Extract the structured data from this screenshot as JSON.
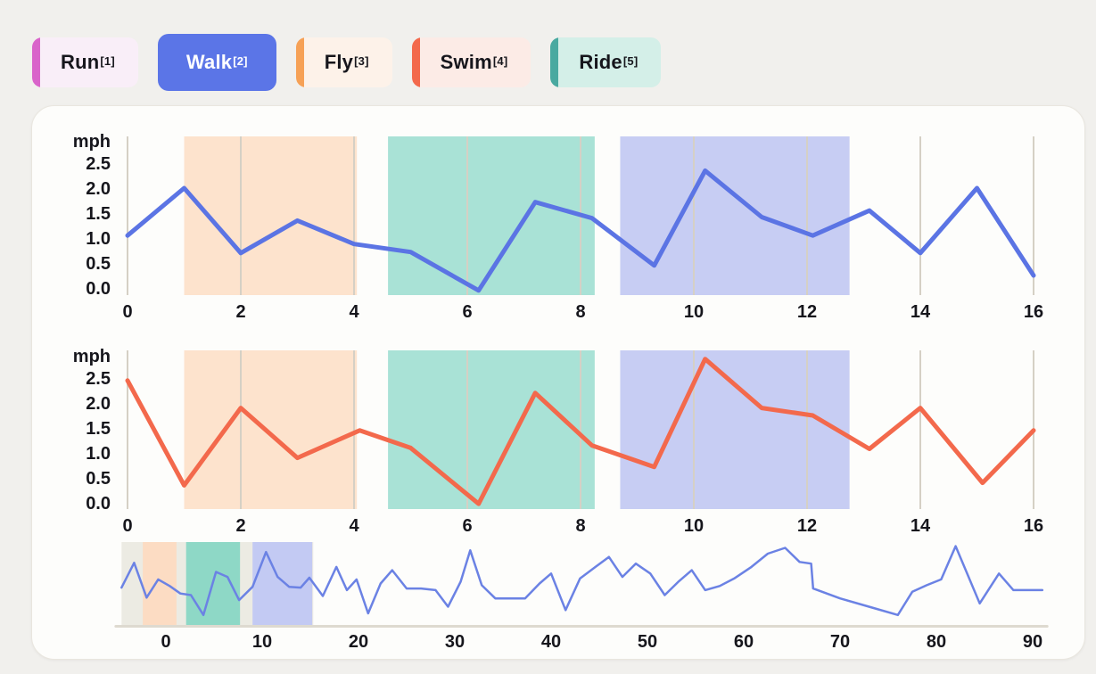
{
  "page": {
    "background": "#f1f0ed",
    "card_background": "#fdfdfb"
  },
  "legend": {
    "items": [
      {
        "id": "run",
        "label": "Run",
        "ref": "[1]",
        "accent": "#d964ca",
        "bg": "#f9eef8",
        "text": "#16161c",
        "selected": false
      },
      {
        "id": "walk",
        "label": "Walk",
        "ref": "[2]",
        "accent": "#5b75e7",
        "bg": "#5b75e7",
        "text": "#ffffff",
        "selected": true
      },
      {
        "id": "fly",
        "label": "Fly",
        "ref": "[3]",
        "accent": "#f6a156",
        "bg": "#fdf2e9",
        "text": "#16161c",
        "selected": false
      },
      {
        "id": "swim",
        "label": "Swim",
        "ref": "[4]",
        "accent": "#f3694c",
        "bg": "#fcebe6",
        "text": "#16161c",
        "selected": false
      },
      {
        "id": "ride",
        "label": "Ride",
        "ref": "[5]",
        "accent": "#49a9a0",
        "bg": "#d4efe8",
        "text": "#16161c",
        "selected": false
      }
    ]
  },
  "chart_data": [
    {
      "id": "walk-speed",
      "type": "line",
      "title": "",
      "ylabel": "mph",
      "xlabel": "",
      "grid": "vertical",
      "legend_position": "none",
      "xlim": [
        -0.6,
        16.8
      ],
      "ylim": [
        -0.15,
        3.04
      ],
      "xticks": [
        0,
        2,
        4,
        6,
        8,
        10,
        12,
        14,
        16
      ],
      "ytick_labels": [
        "0.0",
        "0.5",
        "1.0",
        "1.5",
        "2.0",
        "2.5"
      ],
      "ytick_values": [
        0,
        0.5,
        1.0,
        1.5,
        2.0,
        2.5
      ],
      "series": [
        {
          "name": "Walk",
          "color": "#5b74e4",
          "x": [
            0,
            1,
            2,
            3,
            4,
            5,
            6.2,
            7.2,
            8.2,
            9.3,
            10.2,
            11.2,
            12.1,
            13.1,
            14,
            15,
            16
          ],
          "y": [
            1.05,
            2.0,
            0.7,
            1.35,
            0.88,
            0.72,
            -0.05,
            1.72,
            1.4,
            0.45,
            2.35,
            1.42,
            1.05,
            1.55,
            0.7,
            2.0,
            0.25
          ]
        }
      ],
      "regions": [
        {
          "label": "fly-interval",
          "color": "#fde3cd",
          "from": 1.0,
          "to": 4.05
        },
        {
          "label": "ride-interval",
          "color": "#a9e2d6",
          "from": 4.6,
          "to": 8.25
        },
        {
          "label": "walk-interval",
          "color": "#c7cdf3",
          "from": 8.7,
          "to": 12.75
        }
      ]
    },
    {
      "id": "swim-speed",
      "type": "line",
      "title": "",
      "ylabel": "mph",
      "xlabel": "",
      "grid": "vertical",
      "legend_position": "none",
      "xlim": [
        -0.6,
        16.8
      ],
      "ylim": [
        -0.15,
        3.04
      ],
      "xticks": [
        0,
        2,
        4,
        6,
        8,
        10,
        12,
        14,
        16
      ],
      "ytick_labels": [
        "0.0",
        "0.5",
        "1.0",
        "1.5",
        "2.0",
        "2.5"
      ],
      "ytick_values": [
        0,
        0.5,
        1.0,
        1.5,
        2.0,
        2.5
      ],
      "series": [
        {
          "name": "Swim",
          "color": "#f3694c",
          "x": [
            0,
            1,
            2,
            3,
            4.1,
            5,
            6.2,
            7.2,
            8.2,
            9.3,
            10.2,
            11.2,
            12.1,
            13.1,
            14,
            15.1,
            16
          ],
          "y": [
            2.45,
            0.35,
            1.9,
            0.9,
            1.45,
            1.1,
            -0.02,
            2.2,
            1.15,
            0.72,
            2.88,
            1.9,
            1.75,
            1.08,
            1.9,
            0.4,
            1.45
          ]
        }
      ],
      "regions": [
        {
          "label": "fly-interval",
          "color": "#fde3cd",
          "from": 1.0,
          "to": 4.05
        },
        {
          "label": "ride-interval",
          "color": "#a9e2d6",
          "from": 4.6,
          "to": 8.25
        },
        {
          "label": "walk-interval",
          "color": "#c7cdf3",
          "from": 8.7,
          "to": 12.75
        }
      ]
    },
    {
      "id": "overview",
      "type": "line",
      "title": "",
      "ylabel": "",
      "xlabel": "",
      "grid": "off",
      "legend_position": "none",
      "xlim": [
        -5.2,
        91.5
      ],
      "xticks": [
        0,
        10,
        20,
        30,
        40,
        50,
        60,
        70,
        80,
        90
      ],
      "value_scale": "percent-of-plot-height",
      "series": [
        {
          "name": "overview-speed",
          "color": "#6b82e4",
          "x": [
            -4.6,
            -3.3,
            -2.0,
            -0.8,
            0.4,
            1.5,
            2.6,
            3.9,
            5.2,
            6.4,
            7.6,
            9.0,
            10.4,
            11.6,
            12.8,
            14.0,
            14.9,
            16.3,
            17.7,
            18.8,
            19.8,
            21.0,
            22.3,
            23.5,
            25.0,
            26.5,
            28.0,
            29.3,
            30.6,
            31.6,
            32.8,
            34.2,
            35.8,
            37.3,
            38.8,
            40.0,
            41.5,
            43.0,
            44.6,
            46.0,
            47.4,
            48.8,
            50.3,
            51.8,
            53.2,
            54.6,
            56.0,
            57.5,
            59.0,
            60.8,
            62.5,
            64.3,
            65.8,
            67.0,
            67.2,
            70.0,
            73.0,
            76.0,
            77.5,
            79.0,
            80.5,
            82.0,
            84.5,
            86.5,
            88.0,
            89.0,
            91.0
          ],
          "v": [
            45,
            75,
            33,
            55,
            47,
            38,
            36,
            12,
            64,
            58,
            30,
            46,
            88,
            58,
            46,
            45,
            57,
            35,
            70,
            42,
            55,
            14,
            50,
            66,
            44,
            44,
            42,
            22,
            52,
            90,
            48,
            32,
            32,
            32,
            50,
            62,
            18,
            56,
            70,
            82,
            58,
            74,
            62,
            36,
            52,
            66,
            42,
            47,
            56,
            70,
            86,
            93,
            76,
            74,
            44,
            32,
            22,
            12,
            40,
            48,
            55,
            95,
            26,
            62,
            42,
            42,
            42
          ]
        }
      ],
      "regions": [
        {
          "label": "brush-window",
          "color": "#ecebe3",
          "from": -4.6,
          "to": 15.3
        },
        {
          "label": "fly-interval",
          "color": "#fcdcc3",
          "from": -2.4,
          "to": 1.1
        },
        {
          "label": "ride-interval",
          "color": "#8ed8c6",
          "from": 2.1,
          "to": 7.7
        },
        {
          "label": "walk-interval",
          "color": "#c3caf3",
          "from": 9.0,
          "to": 15.2
        }
      ]
    }
  ],
  "colors": {
    "gridline": "#d5d0c5",
    "axisline": "#dedad0",
    "tick_text": "#16161c"
  }
}
